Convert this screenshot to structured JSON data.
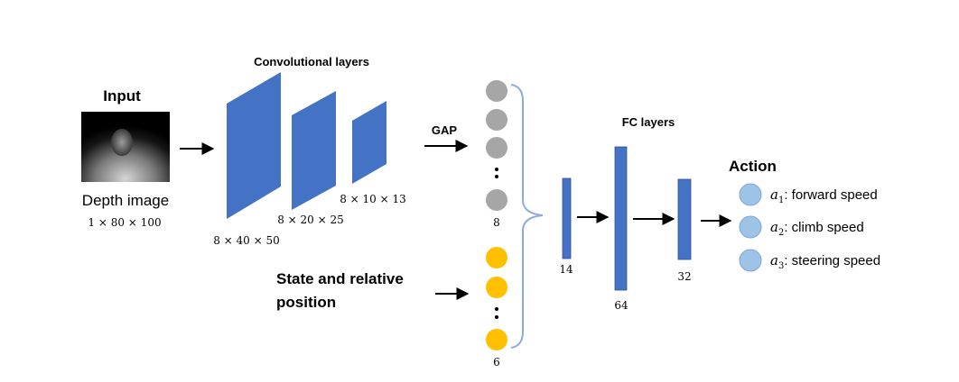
{
  "input": {
    "title": "Input",
    "caption": "Depth image",
    "dims": "1 × 80 × 100"
  },
  "conv": {
    "title": "Convolutional layers",
    "layers": [
      {
        "dims": "8 × 40 × 50"
      },
      {
        "dims": "8 × 20 × 25"
      },
      {
        "dims": "8 × 10 × 13"
      }
    ]
  },
  "gap": {
    "label": "GAP",
    "count": "8"
  },
  "state": {
    "label_line1": "State and relative",
    "label_line2": "position",
    "count": "6"
  },
  "fc": {
    "title": "FC layers",
    "layers": [
      {
        "size": "14"
      },
      {
        "size": "64"
      },
      {
        "size": "32"
      }
    ]
  },
  "action": {
    "title": "Action",
    "items": [
      {
        "symbol": "a",
        "subscript": "1",
        "label": ": forward speed"
      },
      {
        "symbol": "a",
        "subscript": "2",
        "label": ": climb speed"
      },
      {
        "symbol": "a",
        "subscript": "3",
        "label": ": steering speed"
      }
    ]
  },
  "colors": {
    "layer_blue": "#4472C4",
    "gap_gray": "#A6A6A6",
    "state_yellow": "#FFC000",
    "action_circle": "#9DC3E6",
    "brace": "#8FAADC"
  }
}
